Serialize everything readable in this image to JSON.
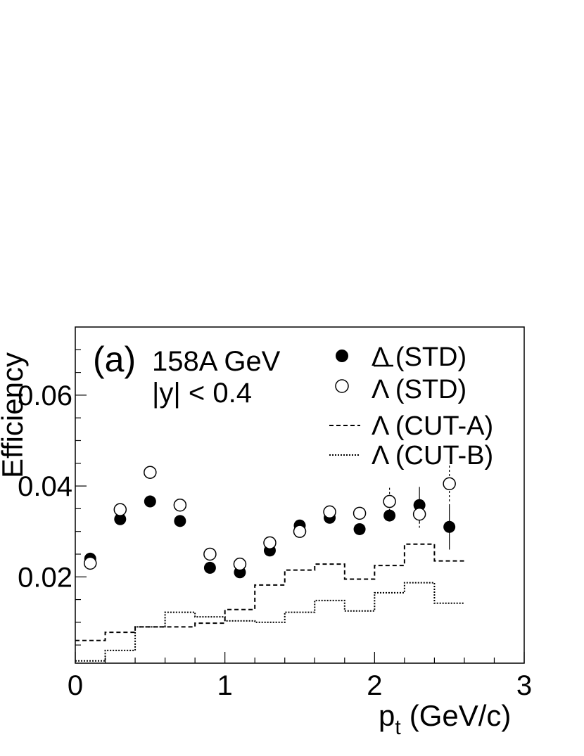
{
  "chart_data": {
    "type": "scatter",
    "title": "",
    "panel_label": "(a)",
    "annotation_lines": [
      "158A GeV",
      "|y| < 0.4"
    ],
    "xlabel_main": "p",
    "xlabel_sub": "t",
    "xlabel_unit": "(GeV/c)",
    "ylabel": "Efficiency",
    "xlim": [
      0,
      3
    ],
    "ylim": [
      0.001,
      0.075
    ],
    "x_ticks": [
      "0",
      "1",
      "2",
      "3"
    ],
    "y_ticks": [
      "0.02",
      "0.04",
      "0.06"
    ],
    "legend_position": "top-right",
    "series": [
      {
        "name": "Λ (STD)",
        "legend_label": "Λ (STD)",
        "marker": "filled-circle",
        "x": [
          0.1,
          0.3,
          0.5,
          0.7,
          0.9,
          1.1,
          1.3,
          1.5,
          1.7,
          1.9,
          2.1,
          2.3,
          2.5
        ],
        "y": [
          0.024,
          0.0327,
          0.0366,
          0.0323,
          0.022,
          0.021,
          0.0258,
          0.0313,
          0.033,
          0.0305,
          0.0335,
          0.0358,
          0.031
        ],
        "err": [
          0,
          0,
          0,
          0,
          0,
          0,
          0,
          0,
          0,
          0,
          0,
          0.004,
          0.005
        ]
      },
      {
        "name": "Λ̅ (STD)",
        "legend_label": "Λ (STD)",
        "legend_overline": true,
        "marker": "open-circle",
        "x": [
          0.1,
          0.3,
          0.5,
          0.7,
          0.9,
          1.1,
          1.3,
          1.5,
          1.7,
          1.9,
          2.1,
          2.3,
          2.5
        ],
        "y": [
          0.023,
          0.0348,
          0.043,
          0.0358,
          0.025,
          0.0228,
          0.0275,
          0.03,
          0.0343,
          0.034,
          0.0366,
          0.0338,
          0.0405
        ],
        "err": [
          0,
          0,
          0,
          0,
          0,
          0,
          0,
          0,
          0,
          0,
          0.003,
          0.003,
          0.004
        ]
      },
      {
        "name": "Λ (CUT-A)",
        "legend_label": "Λ (CUT-A)",
        "style": "dashed-step",
        "bins": [
          0,
          0.2,
          0.4,
          0.6,
          0.8,
          1.0,
          1.2,
          1.4,
          1.6,
          1.8,
          2.0,
          2.2,
          2.4,
          2.6
        ],
        "values": [
          0.006,
          0.0078,
          0.009,
          0.009,
          0.0098,
          0.0128,
          0.0182,
          0.0215,
          0.0228,
          0.0195,
          0.0225,
          0.0272,
          0.0235
        ]
      },
      {
        "name": "Λ (CUT-B)",
        "legend_label": "Λ (CUT-B)",
        "style": "dotted-step",
        "bins": [
          0,
          0.2,
          0.4,
          0.6,
          0.8,
          1.0,
          1.2,
          1.4,
          1.6,
          1.8,
          2.0,
          2.2,
          2.4,
          2.6
        ],
        "values": [
          0.0015,
          0.0038,
          0.009,
          0.0122,
          0.0112,
          0.0103,
          0.01,
          0.0122,
          0.0148,
          0.0125,
          0.0165,
          0.0187,
          0.0142
        ]
      }
    ]
  }
}
